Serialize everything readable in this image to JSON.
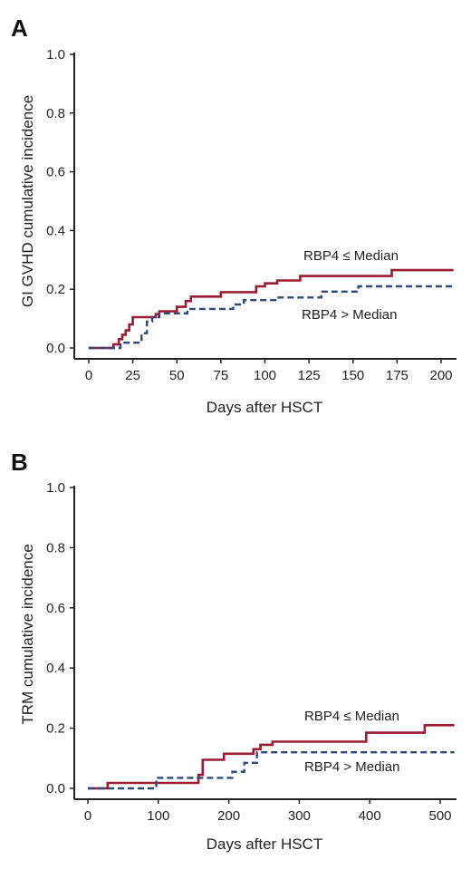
{
  "chart_data": [
    {
      "type": "line",
      "panel_label": "A",
      "xlabel": "Days after HSCT",
      "ylabel": "GI GVHD cumulative incidence",
      "xlim": [
        0,
        207
      ],
      "ylim": [
        0,
        1.0
      ],
      "xticks": [
        "0",
        "25",
        "50",
        "75",
        "100",
        "125",
        "150",
        "175",
        "200"
      ],
      "yticks": [
        "0.0",
        "0.2",
        "0.4",
        "0.6",
        "0.8",
        "1.0"
      ],
      "series": [
        {
          "name": "RBP4 ≤ Median",
          "style": "solid",
          "color": "#9b1b30",
          "x": [
            0,
            14,
            17,
            19,
            21,
            23,
            25,
            38,
            40,
            50,
            55,
            58,
            75,
            95,
            100,
            107,
            120,
            172,
            207
          ],
          "y": [
            0,
            0.012,
            0.03,
            0.045,
            0.06,
            0.08,
            0.105,
            0.115,
            0.125,
            0.14,
            0.16,
            0.175,
            0.19,
            0.21,
            0.22,
            0.23,
            0.245,
            0.265,
            0.265
          ]
        },
        {
          "name": "RBP4 > Median",
          "style": "dashed",
          "color": "#2f4a7a",
          "x": [
            0,
            16,
            18,
            28,
            30,
            33,
            36,
            40,
            45,
            56,
            82,
            88,
            107,
            132,
            150,
            153,
            207
          ],
          "y": [
            0,
            0.0,
            0.018,
            0.018,
            0.05,
            0.09,
            0.105,
            0.118,
            0.118,
            0.133,
            0.148,
            0.163,
            0.172,
            0.192,
            0.192,
            0.21,
            0.21
          ]
        }
      ]
    },
    {
      "type": "line",
      "panel_label": "B",
      "xlabel": "Days after HSCT",
      "ylabel": "TRM cumulative incidence",
      "xlim": [
        0,
        520
      ],
      "ylim": [
        0,
        1.0
      ],
      "xticks": [
        "0",
        "100",
        "200",
        "300",
        "400",
        "500"
      ],
      "yticks": [
        "0.0",
        "0.2",
        "0.4",
        "0.6",
        "0.8",
        "1.0"
      ],
      "series": [
        {
          "name": "RBP4 ≤ Median",
          "style": "solid",
          "color": "#9b1b30",
          "x": [
            0,
            28,
            148,
            157,
            163,
            193,
            235,
            245,
            262,
            395,
            478,
            520
          ],
          "y": [
            0,
            0.018,
            0.018,
            0.045,
            0.095,
            0.115,
            0.13,
            0.145,
            0.155,
            0.185,
            0.21,
            0.21
          ]
        },
        {
          "name": "RBP4 > Median",
          "style": "dashed",
          "color": "#2f4a7a",
          "x": [
            0,
            80,
            97,
            197,
            205,
            222,
            240,
            520
          ],
          "y": [
            0,
            0.0,
            0.035,
            0.035,
            0.055,
            0.085,
            0.12,
            0.12
          ]
        }
      ]
    }
  ]
}
